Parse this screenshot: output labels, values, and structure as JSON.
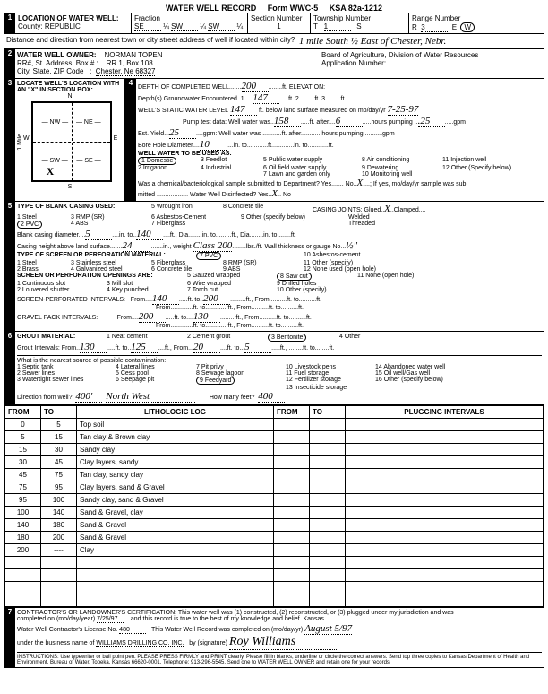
{
  "header": {
    "title": "WATER WELL RECORD",
    "form_no": "Form WWC-5",
    "ksa": "KSA 82a-1212"
  },
  "loc": {
    "county_label": "County:",
    "county": "REPUBLIC",
    "fraction_label": "Fraction",
    "frac1": "SE",
    "q1": "¼",
    "frac2": "SW",
    "q2": "¼",
    "frac3": "SW",
    "q3": "¼",
    "section_label": "Section Number",
    "section": "1",
    "township_label": "Township Number",
    "township_t": "T",
    "township_n": "1",
    "township_s": "S",
    "range_label": "Range Number",
    "range_r": "R",
    "range_n": "3",
    "range_e": "E",
    "range_w": "W",
    "distance_label": "Distance and direction from nearest town or city street address of well if located within city?",
    "distance": "1 mile South ½ East of Chester, Nebr."
  },
  "owner": {
    "label": "WATER WELL OWNER:",
    "name": "NORMAN TOPEN",
    "addr_label": "RR#, St. Address, Box # :",
    "addr": "RR 1, Box 108",
    "city_label": "City, State, ZIP Code",
    "city": "Chester, Ne 68327",
    "board": "Board of Agriculture, Division of Water Resources",
    "app_label": "Application Number:"
  },
  "sec3": {
    "label": "LOCATE WELL'S LOCATION WITH AN \"X\" IN SECTION BOX:"
  },
  "well": {
    "depth_label": "DEPTH OF COMPLETED WELL",
    "depth": "200",
    "elev_label": "ELEVATION:",
    "gw_label": "Depth(s) Groundwater Encountered",
    "gw1": "147",
    "static_label": "WELL'S STATIC WATER LEVEL",
    "static": "147",
    "static_suffix": "ft. below land surface measured on mo/day/yr",
    "static_date": "7-25-97",
    "pump_label": "Pump test data:",
    "well_water": "Well water was",
    "ww_ft": "158",
    "ww_hours": "6",
    "ww_gpm": ".25",
    "est_yield_label": "Est. Yield",
    "est_yield": "25",
    "bore_label": "Bore Hole Diameter",
    "bore": "10",
    "use_label": "WELL WATER TO BE USED AS:",
    "u1": "1 Domestic",
    "u2": "2 Irrigation",
    "u3": "3 Feedlot",
    "u4": "4 Industrial",
    "u5": "5 Public water supply",
    "u6": "6 Oil field water supply",
    "u7": "7 Lawn and garden only",
    "u8": "8 Air conditioning",
    "u9": "9 Dewatering",
    "u10": "10 Monitoring well",
    "u11": "11 Injection well",
    "u12": "12 Other (Specify below)",
    "chem_label": "Was a chemical/bacteriological sample submitted to Department? Yes",
    "chem_no": "No",
    "chem_x": "X",
    "disinf_label": "Water Well Disinfected? Yes",
    "disinf_x": "X"
  },
  "casing": {
    "label": "TYPE OF BLANK CASING USED:",
    "c1": "1 Steel",
    "c2": "2 PVC",
    "c3": "3 RMP (SR)",
    "c4": "4 ABS",
    "c5": "5 Wrought iron",
    "c6": "6 Asbestos-Cement",
    "c7": "7 Fiberglass",
    "c8": "8 Concrete tile",
    "c9": "9 Other (specify below)",
    "joints_label": "CASING JOINTS: Glued",
    "joints_x": "X",
    "clamped": "Clamped",
    "welded": "Welded",
    "threaded": "Threaded",
    "bcd_label": "Blank casing diameter",
    "bcd": "5",
    "bcd_to": "140",
    "height_label": "Casing height above land surface",
    "height": "24",
    "weight_label": "weight",
    "weight": "Class 200",
    "thick_label": "lbs./ft. Wall thickness or gauge No.",
    "thick": "½\"",
    "screen_label": "TYPE OF SCREEN OR PERFORATION MATERIAL:",
    "s1": "1 Steel",
    "s2": "2 Brass",
    "s3": "3 Stainless steel",
    "s4": "4 Galvanized steel",
    "s5": "5 Fiberglass",
    "s6": "6 Concrete tile",
    "s7": "7 PVC",
    "s8": "8 RMP (SR)",
    "s9": "9 ABS",
    "s10": "10 Asbestos-cement",
    "s11": "11 Other (specify)",
    "s12": "12 None used (open hole)",
    "open_label": "SCREEN OR PERFORATION OPENINGS ARE:",
    "o1": "1 Continuous slot",
    "o2": "2 Louvered shutter",
    "o3": "3 Mill slot",
    "o4": "4 Key punched",
    "o5": "5 Gauzed wrapped",
    "o6": "6 Wire wrapped",
    "o7": "7 Torch cut",
    "o8": "8 Saw cut",
    "o9": "9 Drilled holes",
    "o10": "10 Other (specify)",
    "o11": "11 None (open hole)",
    "spi_label": "SCREEN-PERFORATED INTERVALS:",
    "spi_from": "140",
    "spi_to": "200",
    "gpi_label": "GRAVEL PACK INTERVALS:",
    "gpi_from": "200",
    "gpi_to": "130"
  },
  "grout": {
    "label": "GROUT MATERIAL:",
    "g1": "1 Neat cement",
    "g2": "2 Cement grout",
    "g3": "3 Bentonite",
    "g4": "4 Other",
    "int_label": "Grout Intervals: From",
    "int_from": "130",
    "int_to": "125",
    "int_from2": "20",
    "int_to2": "5",
    "contam_label": "What is the nearest source of possible contamination:",
    "p1": "1 Septic tank",
    "p2": "2 Sewer lines",
    "p3": "3 Watertight sewer lines",
    "p4": "4 Lateral lines",
    "p5": "5 Cess pool",
    "p6": "6 Seepage pit",
    "p7": "7 Pit privy",
    "p8": "8 Sewage lagoon",
    "p9": "9 Feedyard",
    "p10": "10 Livestock pens",
    "p11": "11 Fuel storage",
    "p12": "12 Fertilizer storage",
    "p13": "13 Insecticide storage",
    "p14": "14 Abandoned water well",
    "p15": "15 Oil well/Gas well",
    "p16": "16 Other (specify below)",
    "dir_label": "Direction from well?",
    "dir": "400'",
    "dir2": "North West",
    "feet_label": "How many feet?",
    "feet": "400"
  },
  "litho": {
    "h1": "FROM",
    "h2": "TO",
    "h3": "LITHOLOGIC LOG",
    "h4": "FROM",
    "h5": "TO",
    "h6": "PLUGGING INTERVALS",
    "rows": [
      {
        "f": "0",
        "t": "5",
        "d": "Top soil"
      },
      {
        "f": "5",
        "t": "15",
        "d": "Tan clay & Brown clay"
      },
      {
        "f": "15",
        "t": "30",
        "d": "Sandy clay"
      },
      {
        "f": "30",
        "t": "45",
        "d": "Clay layers, sandy"
      },
      {
        "f": "45",
        "t": "75",
        "d": "Tan clay, sandy clay"
      },
      {
        "f": "75",
        "t": "95",
        "d": "Clay layers, sand & Gravel"
      },
      {
        "f": "95",
        "t": "100",
        "d": "Sandy clay, sand & Gravel"
      },
      {
        "f": "100",
        "t": "140",
        "d": "Sand & Gravel, clay"
      },
      {
        "f": "140",
        "t": "180",
        "d": "Sand & Gravel"
      },
      {
        "f": "180",
        "t": "200",
        "d": "Sand & Gravel"
      },
      {
        "f": "200",
        "t": "----",
        "d": "Clay"
      },
      {
        "f": "",
        "t": "",
        "d": ""
      },
      {
        "f": "",
        "t": "",
        "d": ""
      },
      {
        "f": "",
        "t": "",
        "d": ""
      },
      {
        "f": "",
        "t": "",
        "d": ""
      }
    ]
  },
  "cert": {
    "label": "CONTRACTOR'S OR LANDOWNER'S CERTIFICATION: This water well was (1) constructed, (2) reconstructed, or (3) plugged under my jurisdiction and was",
    "completed_label": "completed on (mo/day/year)",
    "completed": "7/25/97",
    "record_label": "and this record is true to the best of my knowledge and belief. Kansas",
    "lic_label": "Water Well Contractor's License No.",
    "lic": "480",
    "rec_label": "This Water Well Record was completed on (mo/day/yr)",
    "rec_date": "August  5/97",
    "biz_label": "under the business name of",
    "biz": "WILLIAMS DRILLING CO. INC.",
    "sig_label": "by (signature)",
    "sig": "Roy Williams",
    "instr": "INSTRUCTIONS: Use typewriter or ball point pen. PLEASE PRESS FIRMLY and PRINT clearly. Please fill in blanks, underline or circle the correct answers. Send top three copies to Kansas Department of Health and Environment, Bureau of Water, Topeka, Kansas 66620-0001. Telephone: 913-296-5545. Send one to WATER WELL OWNER and retain one for your records."
  }
}
